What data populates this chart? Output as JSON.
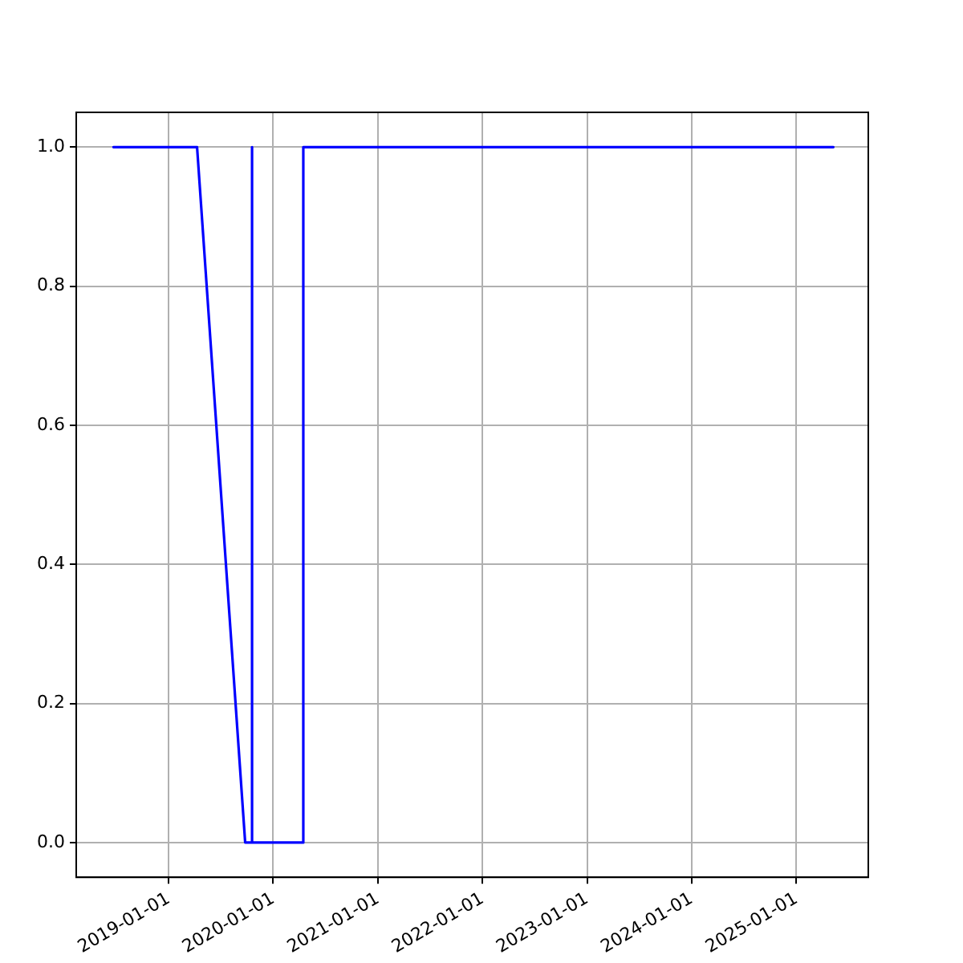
{
  "chart_data": {
    "type": "line",
    "x": [
      "2018-06-22",
      "2019-04-10",
      "2019-09-25",
      "2019-10-19",
      "2019-10-19",
      "2019-10-19",
      "2020-04-15",
      "2020-04-15",
      "2025-05-10"
    ],
    "series": [
      {
        "color": "#0000ff",
        "values": [
          1,
          1,
          0,
          0,
          1,
          0,
          0,
          1,
          1
        ]
      }
    ],
    "xlim": [
      "2018-02-12",
      "2025-09-09"
    ],
    "xticks": [
      "2019-01-01",
      "2020-01-01",
      "2021-01-01",
      "2022-01-01",
      "2023-01-01",
      "2024-01-01",
      "2025-01-01"
    ],
    "ylim": [
      -0.05,
      1.05
    ],
    "yticks": [
      {
        "value": 0,
        "label": "0.0"
      },
      {
        "value": 0.2,
        "label": "0.2"
      },
      {
        "value": 0.4,
        "label": "0.4"
      },
      {
        "value": 0.6,
        "label": "0.6"
      },
      {
        "value": 0.8,
        "label": "0.8"
      },
      {
        "value": 1,
        "label": "1.0"
      }
    ],
    "grid": true,
    "legend": false,
    "marker": "none",
    "line_style": "solid"
  }
}
